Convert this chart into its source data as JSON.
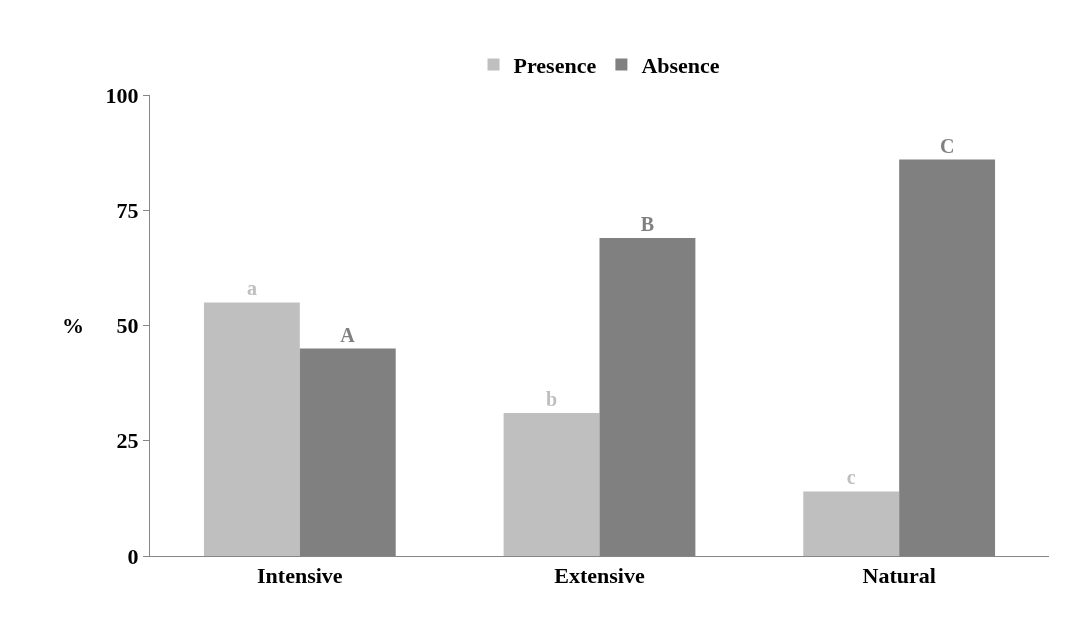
{
  "chart_data": {
    "type": "bar",
    "categories": [
      "Intensive",
      "Extensive",
      "Natural"
    ],
    "ylabel": "%",
    "ylim": [
      0,
      100
    ],
    "yticks": [
      0,
      25,
      50,
      75,
      100
    ],
    "legend": "top",
    "series": [
      {
        "name": "Presence",
        "color": "#bfbfbf",
        "values": [
          55,
          31,
          14
        ],
        "value_labels": [
          "a",
          "b",
          "c"
        ]
      },
      {
        "name": "Absence",
        "color": "#808080",
        "values": [
          45,
          69,
          86
        ],
        "value_labels": [
          "A",
          "B",
          "C"
        ]
      }
    ]
  }
}
